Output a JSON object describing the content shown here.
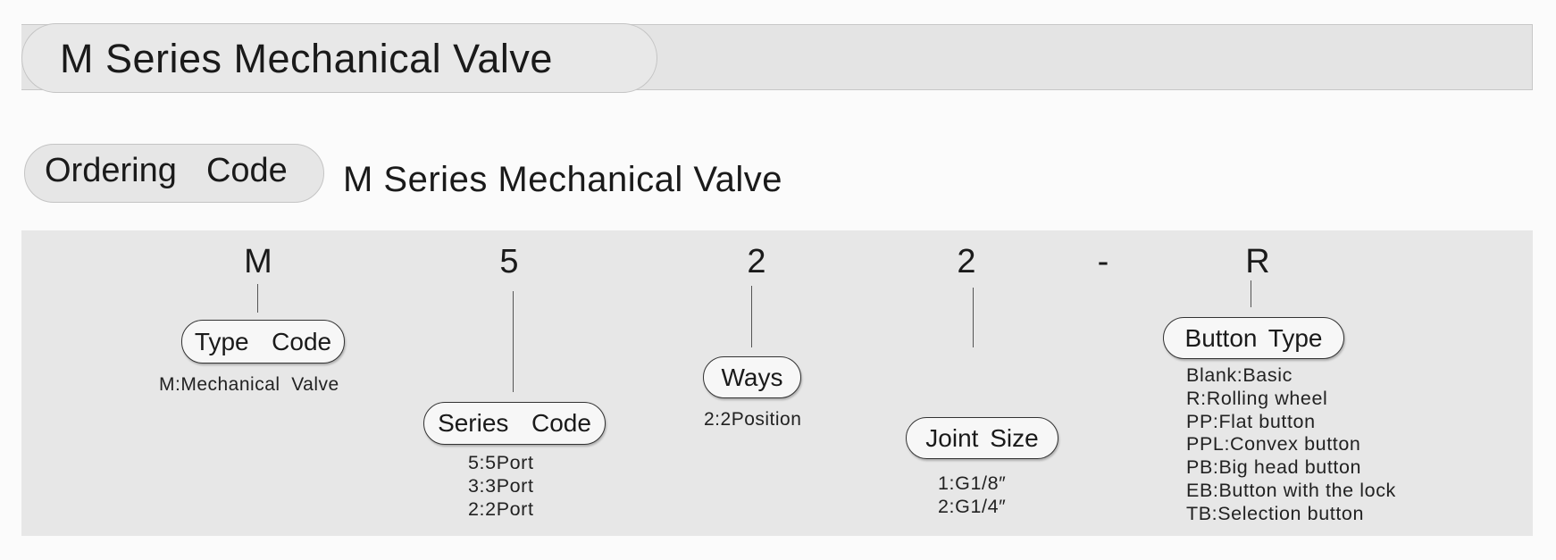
{
  "header": {
    "title": "M Series Mechanical Valve"
  },
  "ordering": {
    "badge": "Ordering  Code",
    "subtitle": "M Series Mechanical Valve"
  },
  "code": {
    "segments": [
      "M",
      "5",
      "2",
      "2",
      "-",
      "R"
    ],
    "type_code": {
      "label": "Type  Code",
      "options": [
        "M:Mechanical  Valve"
      ]
    },
    "series_code": {
      "label": "Series  Code",
      "options": [
        "5:5Port",
        "3:3Port",
        "2:2Port"
      ]
    },
    "ways": {
      "label": "Ways",
      "options": [
        "2:2Position"
      ]
    },
    "joint_size": {
      "label": "Joint Size",
      "options": [
        "1:G1/8″",
        "2:G1/4″"
      ]
    },
    "button_type": {
      "label": "Button Type",
      "options": [
        "Blank:Basic",
        "R:Rolling wheel",
        "PP:Flat button",
        "PPL:Convex button",
        "PB:Big head button",
        "EB:Button with the lock",
        "TB:Selection button"
      ]
    }
  },
  "colors": {
    "panel": "#e7e7e7",
    "pill": "#e8e8e8",
    "text": "#1a1a1a"
  }
}
